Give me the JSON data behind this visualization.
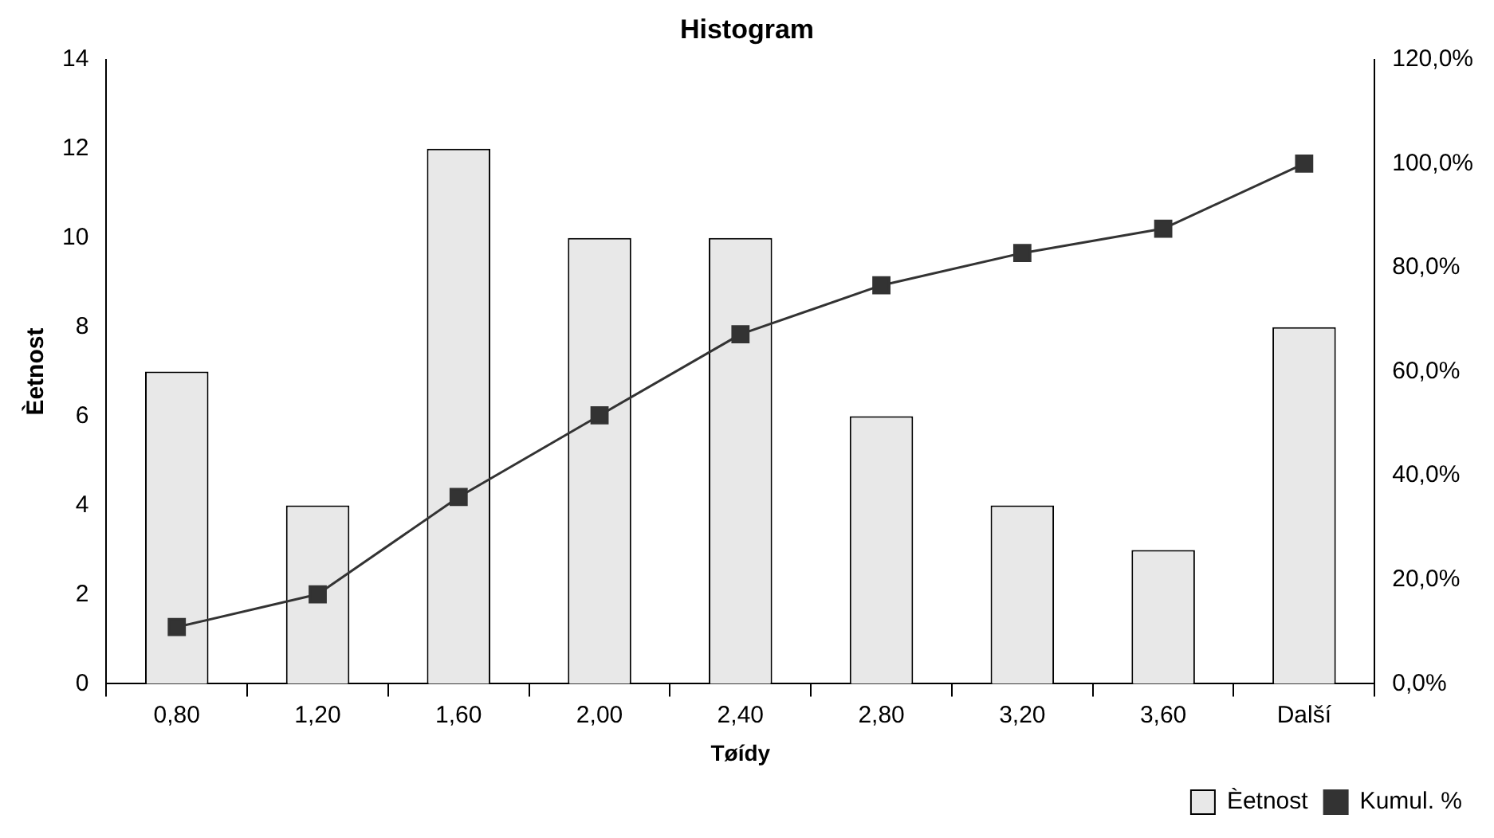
{
  "chart_data": {
    "type": "bar",
    "title": "Histogram",
    "xlabel": "Tøídy",
    "ylabel": "Èetnost",
    "categories": [
      "0,80",
      "1,20",
      "1,60",
      "2,00",
      "2,40",
      "2,80",
      "3,20",
      "3,60",
      "Další"
    ],
    "series": [
      {
        "name": "Èetnost",
        "color": "#e8e8e8",
        "values": [
          7,
          4,
          12,
          10,
          10,
          6,
          4,
          3,
          8
        ]
      },
      {
        "name": "Kumul. %",
        "type": "line",
        "axis": "y2",
        "color": "#333333",
        "values": [
          10.9,
          17.2,
          35.9,
          51.6,
          67.2,
          76.6,
          82.8,
          87.5,
          100
        ]
      }
    ],
    "ylim": [
      0,
      14
    ],
    "yticks": [
      0,
      2,
      4,
      6,
      8,
      10,
      12,
      14
    ],
    "y2lim": [
      0,
      120
    ],
    "y2ticks": [
      {
        "value": 0,
        "label": "0,0%"
      },
      {
        "value": 20,
        "label": "20,0%"
      },
      {
        "value": 40,
        "label": "40,0%"
      },
      {
        "value": 60,
        "label": "60,0%"
      },
      {
        "value": 80,
        "label": "80,0%"
      },
      {
        "value": 100,
        "label": "100,0%"
      },
      {
        "value": 120,
        "label": "120,0%"
      }
    ],
    "grid": false,
    "legend": "bottom right",
    "marker": "square",
    "line_style": "solid"
  }
}
